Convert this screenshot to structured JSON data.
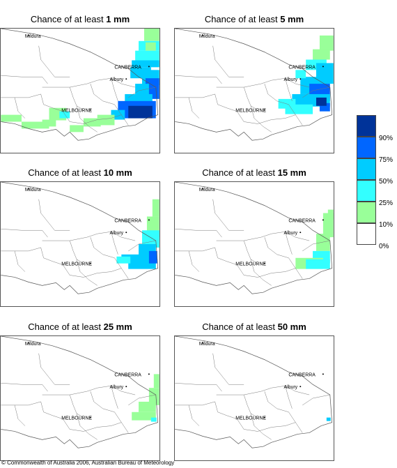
{
  "panels": [
    {
      "title_prefix": "Chance of at least ",
      "threshold": "1 mm"
    },
    {
      "title_prefix": "Chance of at least ",
      "threshold": "5 mm"
    },
    {
      "title_prefix": "Chance of at least ",
      "threshold": "10 mm"
    },
    {
      "title_prefix": "Chance of at least ",
      "threshold": "15 mm"
    },
    {
      "title_prefix": "Chance of at least ",
      "threshold": "25 mm"
    },
    {
      "title_prefix": "Chance of at least ",
      "threshold": "50 mm"
    }
  ],
  "map_labels": {
    "mildura": "Mildura",
    "canberra": "CANBERRA",
    "albury": "Albury",
    "melbourne": "MELBOURNE"
  },
  "legend": {
    "colors": [
      "#003399",
      "#0066ff",
      "#00ccff",
      "#33ffff",
      "#99ff99",
      "#ffffff"
    ],
    "labels": [
      "90%",
      "75%",
      "50%",
      "25%",
      "10%",
      "0%"
    ]
  },
  "copyright": "© Commonwealth of Australia 2006, Australian Bureau of Meteorology"
}
